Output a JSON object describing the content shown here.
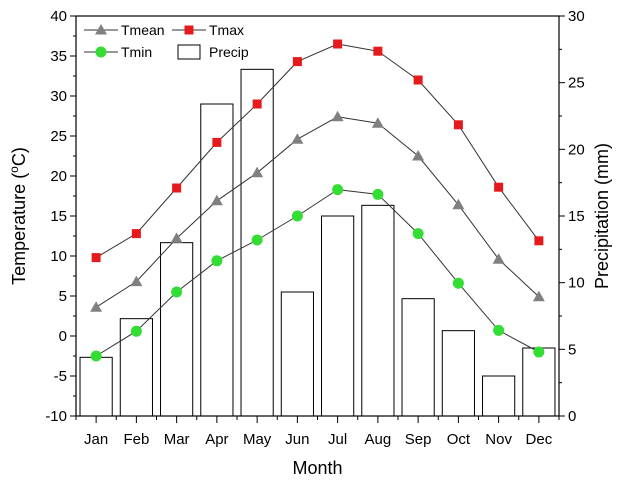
{
  "chart_data": {
    "type": "bar+line",
    "categories": [
      "Jan",
      "Feb",
      "Mar",
      "Apr",
      "May",
      "Jun",
      "Jul",
      "Aug",
      "Sep",
      "Oct",
      "Nov",
      "Dec"
    ],
    "xlabel": "Month",
    "ylabel": "Temperature (",
    "ylabel_sup": "o",
    "ylabel_unit": "C)",
    "y2label": "Precipitation (mm)",
    "ylim": [
      -10,
      40
    ],
    "yticks": [
      -10,
      -5,
      0,
      5,
      10,
      15,
      20,
      25,
      30,
      35,
      40
    ],
    "y2lim": [
      0,
      30
    ],
    "y2ticks": [
      0,
      5,
      10,
      15,
      20,
      25,
      30
    ],
    "legend_position": "top-left",
    "colors": {
      "tmean": "#808080",
      "tmax": "#e41a1c",
      "tmin": "#33dd33",
      "precip_edge": "#000000",
      "precip_fill": "#ffffff"
    },
    "series": [
      {
        "name": "Tmean",
        "axis": "left",
        "kind": "line",
        "marker": "triangle",
        "values": [
          3.6,
          6.8,
          12.2,
          16.9,
          20.4,
          24.6,
          27.4,
          26.6,
          22.5,
          16.4,
          9.6,
          4.9
        ]
      },
      {
        "name": "Tmax",
        "axis": "left",
        "kind": "line",
        "marker": "square",
        "values": [
          9.8,
          12.8,
          18.5,
          24.2,
          29.0,
          34.3,
          36.5,
          35.6,
          32.0,
          26.4,
          18.6,
          11.9
        ]
      },
      {
        "name": "Tmin",
        "axis": "left",
        "kind": "line",
        "marker": "circle",
        "values": [
          -2.5,
          0.6,
          5.5,
          9.4,
          12.0,
          15.0,
          18.3,
          17.7,
          12.8,
          6.6,
          0.7,
          -2.0
        ]
      },
      {
        "name": "Precip",
        "axis": "right",
        "kind": "bar",
        "values": [
          4.4,
          7.3,
          13.0,
          23.4,
          26.0,
          9.3,
          15.0,
          15.8,
          8.8,
          6.4,
          3.0,
          5.1
        ]
      }
    ]
  }
}
